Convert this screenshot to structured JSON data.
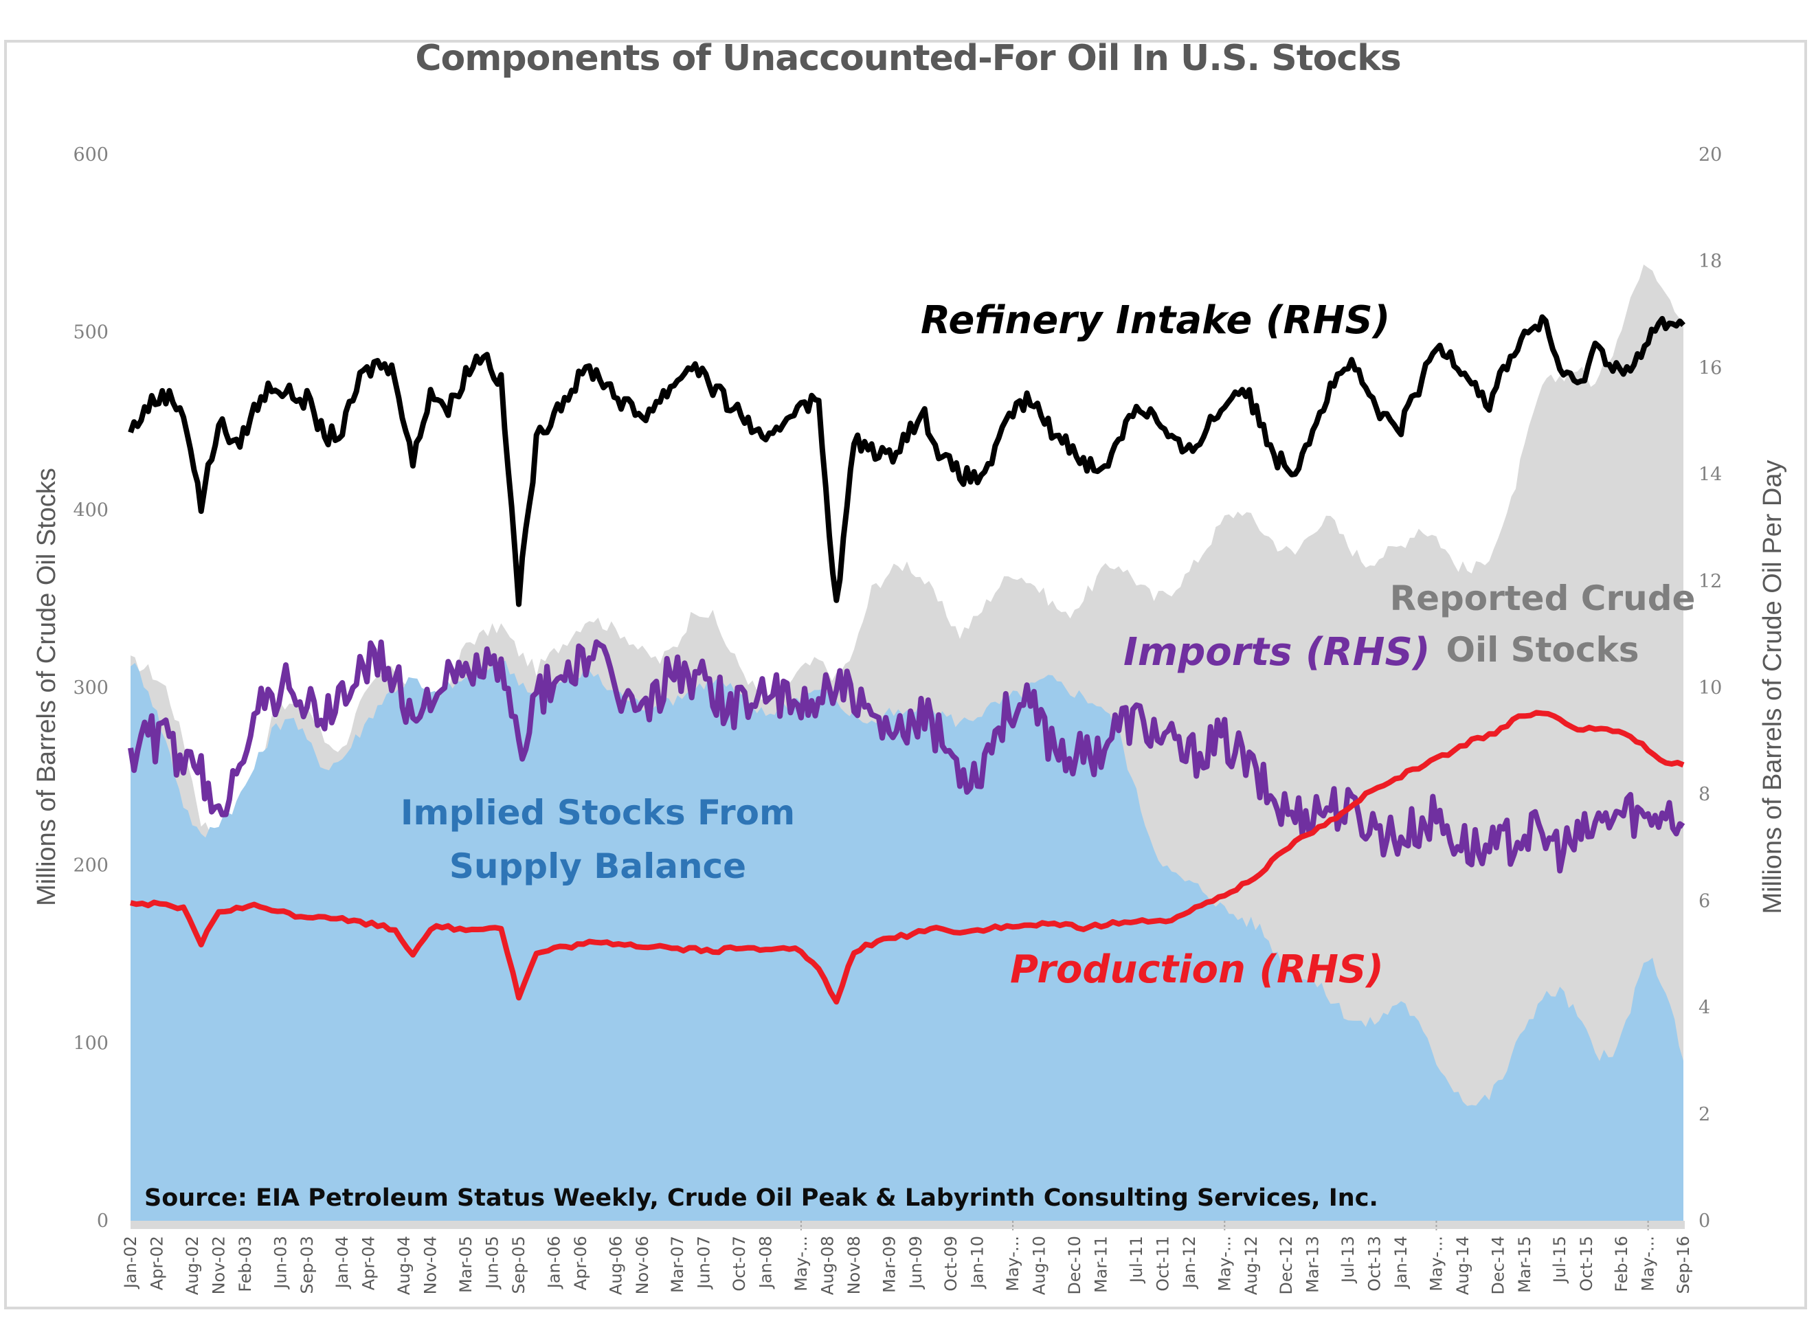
{
  "chart_data": {
    "type": "area",
    "title": "Components of Unaccounted-For Oil In U.S. Stocks",
    "ylabel_left": "Millions of Barrels of Crude Oil Stocks",
    "ylabel_right": "Millions of Barrels of Crude Oil Per Day",
    "ylim_left": [
      0,
      600
    ],
    "ylim_right": [
      0,
      20
    ],
    "yticks_left": [
      "0",
      "100",
      "200",
      "300",
      "400",
      "500",
      "600"
    ],
    "yticks_right": [
      "0",
      "2",
      "4",
      "6",
      "8",
      "10",
      "12",
      "14",
      "16",
      "18",
      "20"
    ],
    "grid": false,
    "source_note": "Source: EIA Petroleum Status Weekly, Crude Oil Peak & Labyrinth Consulting Services, Inc.",
    "x_start": "Jan-02",
    "x_end": "Sep-16",
    "x_unit": "months since Jan-02",
    "xticks": [
      {
        "m": 0,
        "label": "Jan-02"
      },
      {
        "m": 3,
        "label": "Apr-02"
      },
      {
        "m": 7,
        "label": "Aug-02"
      },
      {
        "m": 10,
        "label": "Nov-02"
      },
      {
        "m": 13,
        "label": "Feb-03"
      },
      {
        "m": 17,
        "label": "Jun-03"
      },
      {
        "m": 20,
        "label": "Sep-03"
      },
      {
        "m": 24,
        "label": "Jan-04"
      },
      {
        "m": 27,
        "label": "Apr-04"
      },
      {
        "m": 31,
        "label": "Aug-04"
      },
      {
        "m": 34,
        "label": "Nov-04"
      },
      {
        "m": 38,
        "label": "Mar-05"
      },
      {
        "m": 41,
        "label": "Jun-05"
      },
      {
        "m": 44,
        "label": "Sep-05"
      },
      {
        "m": 48,
        "label": "Jan-06"
      },
      {
        "m": 51,
        "label": "Apr-06"
      },
      {
        "m": 55,
        "label": "Aug-06"
      },
      {
        "m": 58,
        "label": "Nov-06"
      },
      {
        "m": 62,
        "label": "Mar-07"
      },
      {
        "m": 65,
        "label": "Jun-07"
      },
      {
        "m": 69,
        "label": "Oct-07"
      },
      {
        "m": 72,
        "label": "Jan-08"
      },
      {
        "m": 76,
        "label": "May-..."
      },
      {
        "m": 79,
        "label": "Aug-08"
      },
      {
        "m": 82,
        "label": "Nov-08"
      },
      {
        "m": 86,
        "label": "Mar-09"
      },
      {
        "m": 89,
        "label": "Jun-09"
      },
      {
        "m": 93,
        "label": "Oct-09"
      },
      {
        "m": 96,
        "label": "Jan-10"
      },
      {
        "m": 100,
        "label": "May-..."
      },
      {
        "m": 103,
        "label": "Aug-10"
      },
      {
        "m": 107,
        "label": "Dec-10"
      },
      {
        "m": 110,
        "label": "Mar-11"
      },
      {
        "m": 114,
        "label": "Jul-11"
      },
      {
        "m": 117,
        "label": "Oct-11"
      },
      {
        "m": 120,
        "label": "Jan-12"
      },
      {
        "m": 124,
        "label": "May-..."
      },
      {
        "m": 127,
        "label": "Aug-12"
      },
      {
        "m": 131,
        "label": "Dec-12"
      },
      {
        "m": 134,
        "label": "Mar-13"
      },
      {
        "m": 138,
        "label": "Jul-13"
      },
      {
        "m": 141,
        "label": "Oct-13"
      },
      {
        "m": 144,
        "label": "Jan-14"
      },
      {
        "m": 148,
        "label": "May-..."
      },
      {
        "m": 151,
        "label": "Aug-14"
      },
      {
        "m": 155,
        "label": "Dec-14"
      },
      {
        "m": 158,
        "label": "Mar-15"
      },
      {
        "m": 162,
        "label": "Jul-15"
      },
      {
        "m": 165,
        "label": "Oct-15"
      },
      {
        "m": 169,
        "label": "Feb-16"
      },
      {
        "m": 172,
        "label": "May-..."
      },
      {
        "m": 176,
        "label": "Sep-16"
      }
    ],
    "x_months": [
      0,
      2,
      4,
      6,
      8,
      10,
      12,
      14,
      16,
      18,
      20,
      22,
      24,
      26,
      28,
      30,
      32,
      34,
      36,
      38,
      40,
      42,
      44,
      46,
      48,
      50,
      52,
      54,
      56,
      58,
      60,
      62,
      64,
      66,
      68,
      70,
      72,
      74,
      76,
      78,
      80,
      82,
      84,
      86,
      88,
      90,
      92,
      94,
      96,
      98,
      100,
      102,
      104,
      106,
      108,
      110,
      112,
      114,
      116,
      118,
      120,
      122,
      124,
      126,
      128,
      130,
      132,
      134,
      136,
      138,
      140,
      142,
      144,
      146,
      148,
      150,
      152,
      154,
      156,
      158,
      160,
      162,
      164,
      166,
      168,
      170,
      172,
      174,
      176
    ],
    "series": [
      {
        "name": "Reported Crude Oil Stocks",
        "axis": "left",
        "kind": "area",
        "color": "#d9d9d9",
        "values": [
          315,
          310,
          300,
          270,
          225,
          215,
          210,
          240,
          285,
          290,
          290,
          270,
          265,
          290,
          305,
          310,
          300,
          290,
          300,
          325,
          330,
          335,
          320,
          310,
          320,
          330,
          340,
          335,
          330,
          320,
          315,
          325,
          345,
          340,
          320,
          305,
          290,
          300,
          310,
          315,
          305,
          320,
          355,
          365,
          370,
          360,
          345,
          330,
          340,
          355,
          365,
          360,
          350,
          340,
          350,
          365,
          370,
          360,
          350,
          355,
          365,
          380,
          395,
          400,
          390,
          380,
          375,
          390,
          395,
          380,
          370,
          375,
          380,
          390,
          385,
          370,
          365,
          375,
          395,
          435,
          470,
          475,
          480,
          470,
          490,
          520,
          540,
          525,
          505
        ]
      },
      {
        "name": "Implied Stocks From Supply Balance",
        "axis": "left",
        "kind": "area",
        "color": "#9dcbec",
        "values": [
          315,
          300,
          270,
          235,
          215,
          225,
          235,
          255,
          275,
          285,
          270,
          255,
          260,
          275,
          290,
          300,
          305,
          295,
          300,
          305,
          310,
          315,
          305,
          295,
          300,
          305,
          310,
          300,
          295,
          290,
          290,
          295,
          300,
          305,
          300,
          290,
          285,
          290,
          295,
          300,
          290,
          285,
          280,
          285,
          285,
          290,
          285,
          280,
          285,
          290,
          295,
          300,
          305,
          300,
          295,
          290,
          275,
          240,
          210,
          195,
          190,
          185,
          175,
          170,
          165,
          150,
          140,
          135,
          125,
          115,
          110,
          115,
          125,
          110,
          90,
          75,
          65,
          70,
          85,
          110,
          125,
          130,
          115,
          95,
          90,
          120,
          150,
          130,
          90
        ]
      },
      {
        "name": "Refinery Intake (RHS)",
        "axis": "right",
        "kind": "line",
        "color": "#000000",
        "values": [
          14.8,
          15.3,
          15.5,
          15.2,
          13.4,
          15.0,
          14.5,
          15.2,
          15.7,
          15.5,
          15.4,
          14.7,
          14.8,
          15.8,
          16.1,
          15.9,
          14.2,
          15.6,
          15.2,
          15.9,
          16.3,
          15.7,
          11.7,
          14.6,
          15.2,
          15.6,
          16.0,
          15.7,
          15.3,
          15.1,
          15.4,
          15.8,
          16.1,
          15.6,
          15.3,
          15.0,
          14.5,
          15.0,
          15.4,
          15.3,
          11.5,
          14.6,
          14.5,
          14.3,
          14.8,
          15.1,
          14.3,
          14.0,
          13.9,
          14.4,
          15.2,
          15.4,
          14.9,
          14.6,
          14.3,
          14.0,
          14.7,
          15.3,
          15.1,
          14.6,
          14.4,
          14.9,
          15.3,
          15.7,
          15.0,
          14.3,
          14.1,
          14.9,
          15.6,
          16.1,
          15.6,
          15.0,
          14.9,
          15.6,
          16.4,
          16.2,
          15.8,
          15.3,
          16.1,
          16.6,
          16.9,
          16.0,
          15.6,
          16.4,
          16.1,
          15.9,
          16.5,
          16.9,
          16.8
        ]
      },
      {
        "name": "Imports (RHS)",
        "axis": "right",
        "kind": "line",
        "color": "#7030a0",
        "values": [
          8.8,
          9.1,
          9.0,
          8.6,
          8.3,
          7.5,
          8.7,
          9.4,
          9.8,
          10.2,
          9.6,
          9.4,
          9.9,
          10.3,
          10.6,
          10.1,
          9.4,
          10.0,
          10.1,
          10.2,
          10.5,
          10.2,
          8.9,
          9.8,
          10.1,
          10.4,
          10.6,
          10.3,
          9.8,
          9.5,
          10.0,
          10.4,
          10.2,
          10.0,
          9.6,
          9.8,
          10.0,
          9.7,
          9.6,
          9.9,
          10.2,
          9.7,
          9.3,
          9.0,
          9.2,
          9.4,
          9.0,
          8.5,
          8.4,
          9.2,
          9.7,
          9.6,
          9.1,
          8.8,
          8.7,
          8.9,
          9.3,
          9.4,
          9.2,
          8.9,
          8.7,
          8.9,
          9.0,
          8.7,
          8.2,
          7.8,
          7.6,
          7.7,
          7.8,
          7.7,
          7.5,
          7.3,
          7.2,
          7.4,
          7.6,
          7.2,
          7.0,
          6.9,
          7.1,
          7.3,
          7.2,
          7.0,
          7.1,
          7.4,
          7.6,
          7.7,
          7.5,
          7.8,
          7.4
        ]
      },
      {
        "name": "Production (RHS)",
        "axis": "right",
        "kind": "line",
        "color": "#ed1c24",
        "values": [
          5.95,
          5.95,
          5.9,
          5.85,
          5.2,
          5.8,
          5.85,
          5.9,
          5.85,
          5.75,
          5.7,
          5.72,
          5.65,
          5.6,
          5.55,
          5.45,
          5.0,
          5.5,
          5.5,
          5.45,
          5.5,
          5.5,
          4.2,
          5.0,
          5.1,
          5.15,
          5.2,
          5.2,
          5.2,
          5.15,
          5.15,
          5.1,
          5.1,
          5.05,
          5.1,
          5.1,
          5.1,
          5.15,
          5.05,
          4.7,
          4.1,
          5.05,
          5.2,
          5.3,
          5.35,
          5.45,
          5.5,
          5.4,
          5.45,
          5.5,
          5.5,
          5.55,
          5.55,
          5.55,
          5.5,
          5.55,
          5.6,
          5.6,
          5.65,
          5.6,
          5.8,
          6.0,
          6.1,
          6.3,
          6.5,
          6.9,
          7.1,
          7.3,
          7.5,
          7.7,
          8.0,
          8.2,
          8.35,
          8.5,
          8.65,
          8.8,
          9.0,
          9.1,
          9.3,
          9.5,
          9.55,
          9.4,
          9.25,
          9.2,
          9.2,
          9.05,
          8.85,
          8.6,
          8.55
        ]
      }
    ],
    "annotations": [
      {
        "text": "Refinery Intake (RHS)",
        "color": "#000000",
        "style": "bold-italic"
      },
      {
        "text": "Reported Crude",
        "color": "#7f7f7f",
        "style": "bold"
      },
      {
        "text": "Oil Stocks",
        "color": "#7f7f7f",
        "style": "bold"
      },
      {
        "text": "Imports (RHS)",
        "color": "#7030a0",
        "style": "bold-italic"
      },
      {
        "text": "Implied Stocks From",
        "color": "#2e75b6",
        "style": "bold"
      },
      {
        "text": "Supply Balance",
        "color": "#2e75b6",
        "style": "bold"
      },
      {
        "text": "Production (RHS)",
        "color": "#ed1c24",
        "style": "bold-italic"
      }
    ]
  }
}
